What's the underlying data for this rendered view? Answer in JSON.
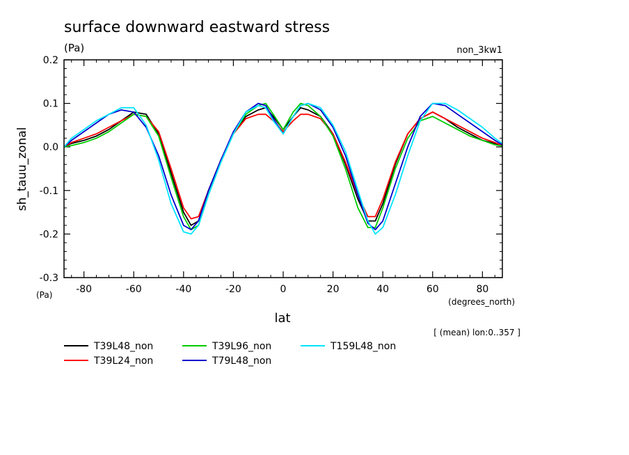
{
  "chart_data": {
    "type": "line",
    "title": "surface downward eastward stress",
    "units": "(Pa)",
    "run_label": "non_3kw1",
    "ylabel": "sh_tauu_zonal",
    "xlabel": "lat",
    "x_units": "(degrees_north)",
    "y_units": "(Pa)",
    "footnote": "[ (mean) lon:0..357 ]",
    "xlim": [
      -88,
      88
    ],
    "ylim": [
      -0.3,
      0.2
    ],
    "x_ticks": [
      -80,
      -60,
      -40,
      -20,
      0,
      20,
      40,
      60,
      80
    ],
    "x_tick_labels": [
      "-80",
      "-60",
      "-40",
      "-20",
      "0",
      "20",
      "40",
      "60",
      "80"
    ],
    "y_ticks": [
      -0.3,
      -0.2,
      -0.1,
      0.0,
      0.1,
      0.2
    ],
    "y_tick_labels": [
      "-0.3",
      "-0.2",
      "-0.1",
      "0.0",
      "0.1",
      "0.2"
    ],
    "x": [
      -88,
      -85,
      -80,
      -75,
      -70,
      -65,
      -60,
      -55,
      -50,
      -45,
      -40,
      -37,
      -34,
      -30,
      -25,
      -20,
      -15,
      -10,
      -7,
      -4,
      0,
      4,
      7,
      10,
      15,
      20,
      25,
      30,
      34,
      37,
      40,
      45,
      50,
      55,
      60,
      65,
      70,
      75,
      80,
      85,
      88
    ],
    "series": [
      {
        "name": "T39L48_non",
        "color": "#000000",
        "values": [
          0.0,
          0.008,
          0.015,
          0.025,
          0.04,
          0.06,
          0.08,
          0.075,
          0.03,
          -0.06,
          -0.15,
          -0.18,
          -0.17,
          -0.1,
          -0.03,
          0.03,
          0.07,
          0.085,
          0.09,
          0.07,
          0.04,
          0.07,
          0.09,
          0.085,
          0.07,
          0.03,
          -0.04,
          -0.12,
          -0.17,
          -0.17,
          -0.13,
          -0.04,
          0.03,
          0.065,
          0.08,
          0.065,
          0.045,
          0.03,
          0.015,
          0.008,
          0.003
        ]
      },
      {
        "name": "T39L24_non",
        "color": "#ff0000",
        "values": [
          0.0,
          0.01,
          0.02,
          0.03,
          0.045,
          0.06,
          0.075,
          0.07,
          0.035,
          -0.05,
          -0.14,
          -0.165,
          -0.16,
          -0.1,
          -0.03,
          0.03,
          0.065,
          0.075,
          0.075,
          0.06,
          0.035,
          0.06,
          0.075,
          0.075,
          0.065,
          0.03,
          -0.035,
          -0.11,
          -0.16,
          -0.16,
          -0.12,
          -0.035,
          0.03,
          0.065,
          0.08,
          0.065,
          0.05,
          0.035,
          0.02,
          0.01,
          0.003
        ]
      },
      {
        "name": "T39L96_non",
        "color": "#00cc00",
        "values": [
          0.0,
          0.003,
          0.01,
          0.02,
          0.035,
          0.055,
          0.075,
          0.07,
          0.025,
          -0.07,
          -0.16,
          -0.19,
          -0.18,
          -0.11,
          -0.035,
          0.03,
          0.075,
          0.095,
          0.1,
          0.075,
          0.04,
          0.08,
          0.1,
          0.095,
          0.07,
          0.025,
          -0.05,
          -0.14,
          -0.185,
          -0.185,
          -0.14,
          -0.05,
          0.02,
          0.06,
          0.07,
          0.055,
          0.04,
          0.025,
          0.015,
          0.005,
          0.002
        ]
      },
      {
        "name": "T79L48_non",
        "color": "#0000cc",
        "values": [
          0.0,
          0.015,
          0.035,
          0.055,
          0.075,
          0.085,
          0.08,
          0.045,
          -0.02,
          -0.11,
          -0.18,
          -0.19,
          -0.17,
          -0.1,
          -0.03,
          0.035,
          0.08,
          0.1,
          0.095,
          0.065,
          0.03,
          0.07,
          0.095,
          0.1,
          0.085,
          0.045,
          -0.02,
          -0.11,
          -0.175,
          -0.19,
          -0.17,
          -0.085,
          0.0,
          0.07,
          0.1,
          0.095,
          0.075,
          0.055,
          0.035,
          0.015,
          0.005
        ]
      },
      {
        "name": "T159L48_non",
        "color": "#00e5ff",
        "values": [
          0.0,
          0.02,
          0.04,
          0.06,
          0.075,
          0.09,
          0.09,
          0.05,
          -0.03,
          -0.13,
          -0.195,
          -0.2,
          -0.18,
          -0.11,
          -0.035,
          0.03,
          0.08,
          0.095,
          0.09,
          0.06,
          0.03,
          0.07,
          0.095,
          0.1,
          0.09,
          0.05,
          -0.01,
          -0.1,
          -0.17,
          -0.2,
          -0.185,
          -0.11,
          -0.02,
          0.06,
          0.1,
          0.1,
          0.085,
          0.065,
          0.045,
          0.02,
          0.008
        ]
      }
    ],
    "legend_rows": [
      [
        "T39L48_non",
        "T39L96_non",
        "T159L48_non"
      ],
      [
        "T39L24_non",
        "T79L48_non"
      ]
    ],
    "grid": false,
    "legend": "bottom-left"
  }
}
